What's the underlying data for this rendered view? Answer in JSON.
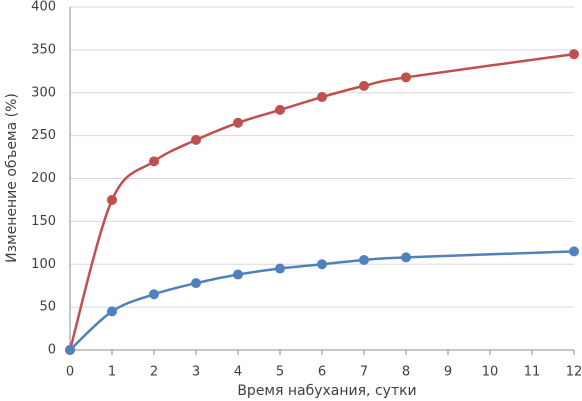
{
  "chart_data": {
    "type": "line",
    "x_label": "Время набухания, сутки",
    "y_label": "Изменение объема (%)",
    "x": [
      0,
      1,
      2,
      3,
      4,
      5,
      6,
      7,
      8,
      12
    ],
    "xlim": [
      0,
      12
    ],
    "xticks": [
      0,
      1,
      2,
      3,
      4,
      5,
      6,
      7,
      8,
      9,
      10,
      11,
      12
    ],
    "ylim": [
      0,
      400
    ],
    "yticks": [
      0,
      50,
      100,
      150,
      200,
      250,
      300,
      350,
      400
    ],
    "grid": true,
    "series": [
      {
        "color": "#c0504d",
        "values": [
          0,
          175,
          220,
          245,
          265,
          280,
          295,
          308,
          318,
          345
        ]
      },
      {
        "color": "#4f81bd",
        "values": [
          0,
          45,
          65,
          78,
          88,
          95,
          100,
          105,
          108,
          115
        ]
      }
    ]
  }
}
